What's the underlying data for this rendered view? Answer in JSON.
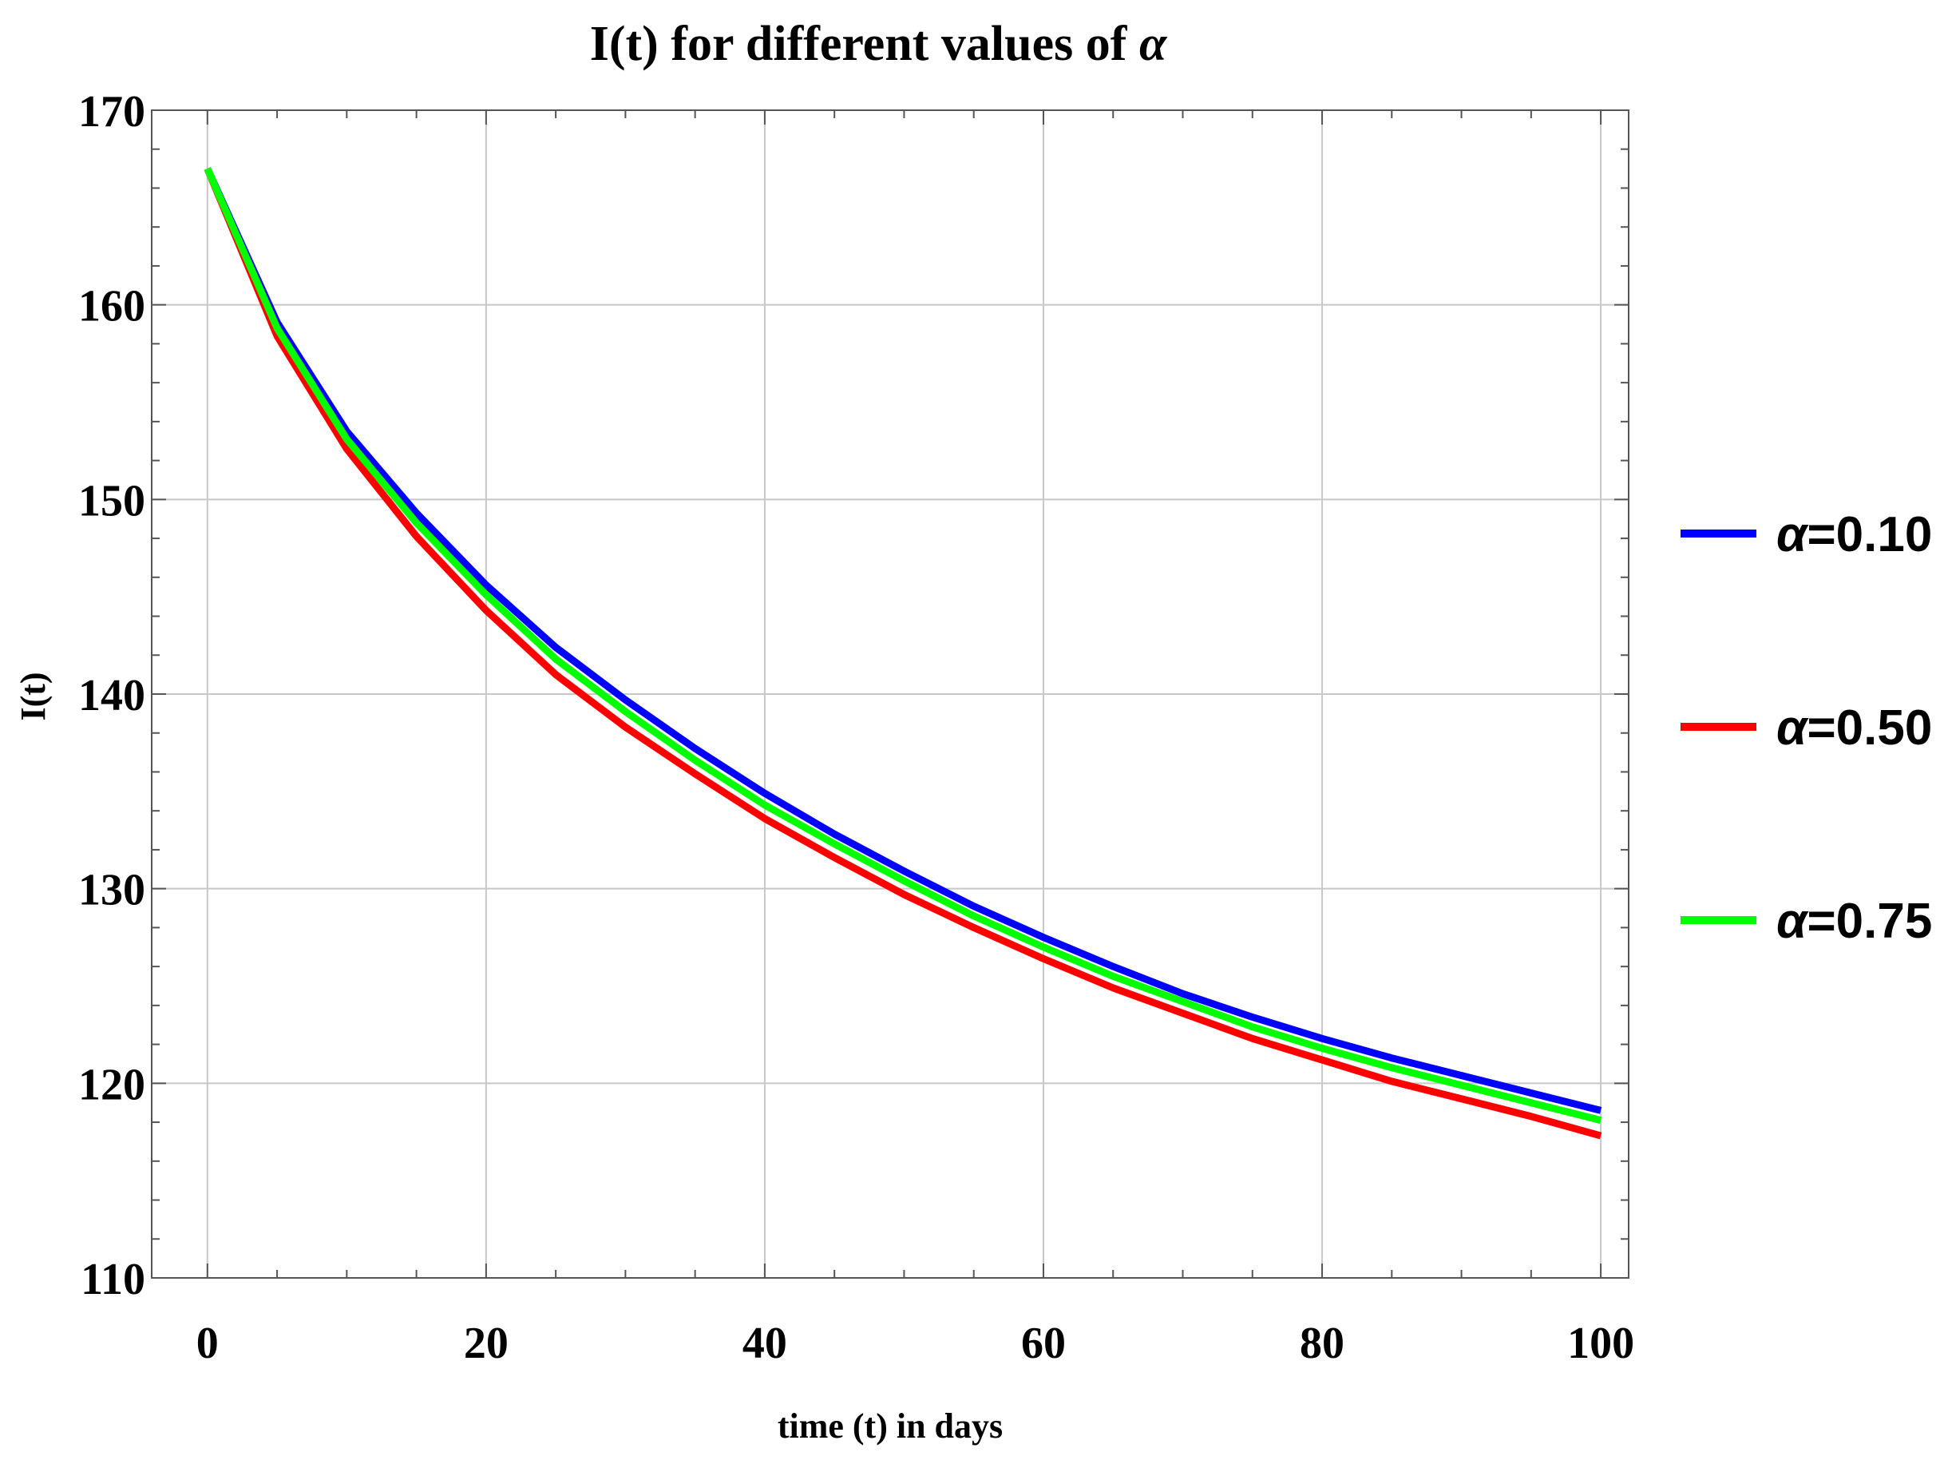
{
  "chart_data": {
    "type": "line",
    "title_prefix": "I(t) for different values of ",
    "title_symbol": "α",
    "title": "I(t) for different values of α",
    "xlabel": "time (t) in days",
    "ylabel": "I(t)",
    "xlim": [
      -4,
      102
    ],
    "ylim": [
      110,
      170
    ],
    "xticks": [
      "0",
      "20",
      "40",
      "60",
      "80",
      "100"
    ],
    "yticks": [
      "110",
      "120",
      "130",
      "140",
      "150",
      "160",
      "170"
    ],
    "grid": true,
    "legend_position": "right",
    "x": [
      0,
      5,
      10,
      15,
      20,
      25,
      30,
      35,
      40,
      45,
      50,
      55,
      60,
      65,
      70,
      75,
      80,
      85,
      90,
      95,
      100
    ],
    "series": [
      {
        "name": "α=0.10",
        "symbol": "α",
        "value_label": "=0.10",
        "color": "#0000ff",
        "values": [
          167.0,
          159.1,
          153.5,
          149.3,
          145.6,
          142.4,
          139.7,
          137.2,
          134.9,
          132.8,
          130.9,
          129.1,
          127.5,
          126.0,
          124.6,
          123.4,
          122.3,
          121.3,
          120.4,
          119.5,
          118.6
        ]
      },
      {
        "name": "α=0.50",
        "symbol": "α",
        "value_label": "=0.50",
        "color": "#ff0000",
        "values": [
          167.0,
          158.4,
          152.6,
          148.1,
          144.3,
          141.0,
          138.3,
          135.9,
          133.6,
          131.6,
          129.7,
          128.0,
          126.4,
          124.9,
          123.6,
          122.3,
          121.2,
          120.1,
          119.2,
          118.3,
          117.3
        ]
      },
      {
        "name": "α=0.75",
        "symbol": "α",
        "value_label": "=0.75",
        "color": "#00ff00",
        "values": [
          167.0,
          158.8,
          153.1,
          148.8,
          145.1,
          141.8,
          139.1,
          136.6,
          134.3,
          132.3,
          130.4,
          128.6,
          127.0,
          125.5,
          124.2,
          122.9,
          121.8,
          120.8,
          119.9,
          119.0,
          118.1
        ]
      }
    ]
  }
}
